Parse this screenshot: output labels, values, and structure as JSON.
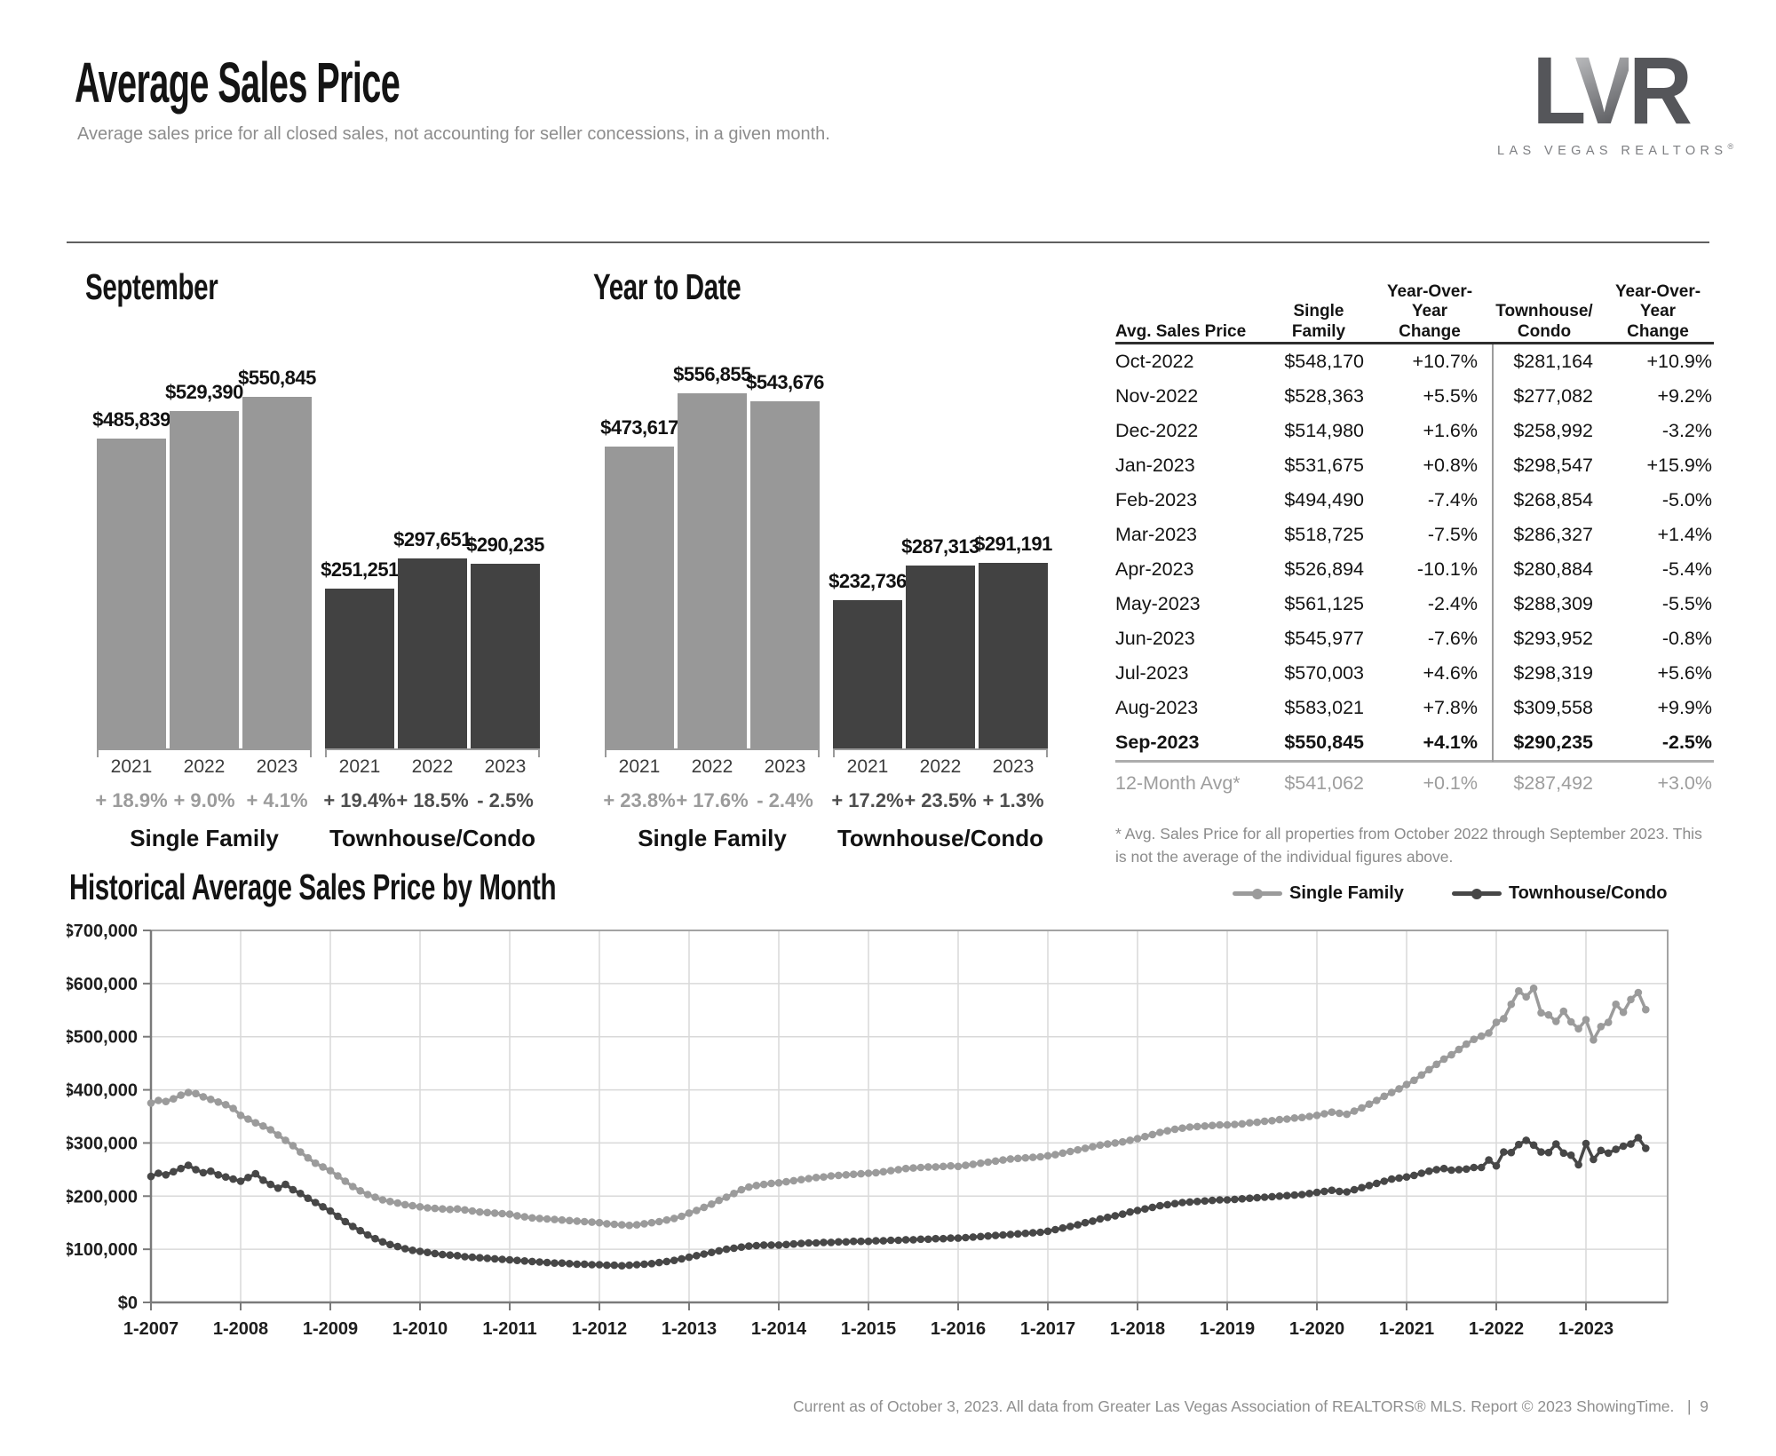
{
  "page": {
    "title": "Average Sales Price",
    "subtitle": "Average sales price for all closed sales, not accounting for seller concessions, in a given month.",
    "footer_text": "Current as of October 3, 2023. All data from Greater Las Vegas Association of REALTORS® MLS. Report © 2023 ShowingTime.",
    "footer_separator": "|",
    "page_number": "9"
  },
  "logo": {
    "letter_l": "L",
    "letter_v": "V",
    "letter_r": "R",
    "subtext": "LAS VEGAS REALTORS",
    "registered_mark": "®"
  },
  "colors": {
    "single_family": "#989898",
    "townhouse_condo": "#424242",
    "sf_pct_label": "#9b9b9b",
    "tc_pct_label": "#4e4e4e",
    "grid": "#d9d9d9",
    "axis": "#7a7a7a",
    "plot_border": "#a3a3a3"
  },
  "table": {
    "col_headers": [
      "Avg. Sales Price",
      "Single\nFamily",
      "Year-Over-Year\nChange",
      "Townhouse/\nCondo",
      "Year-Over-Year\nChange"
    ],
    "rows": [
      {
        "month": "Oct-2022",
        "sf": "$548,170",
        "sf_chg": "+10.7%",
        "tc": "$281,164",
        "tc_chg": "+10.9%",
        "bold": false
      },
      {
        "month": "Nov-2022",
        "sf": "$528,363",
        "sf_chg": "+5.5%",
        "tc": "$277,082",
        "tc_chg": "+9.2%",
        "bold": false
      },
      {
        "month": "Dec-2022",
        "sf": "$514,980",
        "sf_chg": "+1.6%",
        "tc": "$258,992",
        "tc_chg": "-3.2%",
        "bold": false
      },
      {
        "month": "Jan-2023",
        "sf": "$531,675",
        "sf_chg": "+0.8%",
        "tc": "$298,547",
        "tc_chg": "+15.9%",
        "bold": false
      },
      {
        "month": "Feb-2023",
        "sf": "$494,490",
        "sf_chg": "-7.4%",
        "tc": "$268,854",
        "tc_chg": "-5.0%",
        "bold": false
      },
      {
        "month": "Mar-2023",
        "sf": "$518,725",
        "sf_chg": "-7.5%",
        "tc": "$286,327",
        "tc_chg": "+1.4%",
        "bold": false
      },
      {
        "month": "Apr-2023",
        "sf": "$526,894",
        "sf_chg": "-10.1%",
        "tc": "$280,884",
        "tc_chg": "-5.4%",
        "bold": false
      },
      {
        "month": "May-2023",
        "sf": "$561,125",
        "sf_chg": "-2.4%",
        "tc": "$288,309",
        "tc_chg": "-5.5%",
        "bold": false
      },
      {
        "month": "Jun-2023",
        "sf": "$545,977",
        "sf_chg": "-7.6%",
        "tc": "$293,952",
        "tc_chg": "-0.8%",
        "bold": false
      },
      {
        "month": "Jul-2023",
        "sf": "$570,003",
        "sf_chg": "+4.6%",
        "tc": "$298,319",
        "tc_chg": "+5.6%",
        "bold": false
      },
      {
        "month": "Aug-2023",
        "sf": "$583,021",
        "sf_chg": "+7.8%",
        "tc": "$309,558",
        "tc_chg": "+9.9%",
        "bold": false
      },
      {
        "month": "Sep-2023",
        "sf": "$550,845",
        "sf_chg": "+4.1%",
        "tc": "$290,235",
        "tc_chg": "-2.5%",
        "bold": true
      }
    ],
    "avg_row": {
      "month": "12-Month Avg*",
      "sf": "$541,062",
      "sf_chg": "+0.1%",
      "tc": "$287,492",
      "tc_chg": "+3.0%"
    },
    "footnote": "* Avg. Sales Price for all properties from October 2022 through September 2023. This is not the average of the individual figures above."
  },
  "chart_data": [
    {
      "id": "september",
      "type": "bar",
      "title": "September",
      "ylim": [
        0,
        600000
      ],
      "groups": [
        {
          "label": "Single Family",
          "color": "#989898",
          "pct_color": "#9b9b9b",
          "categories": [
            "2021",
            "2022",
            "2023"
          ],
          "values": [
            485839,
            529390,
            550845
          ],
          "value_labels": [
            "$485,839",
            "$529,390",
            "$550,845"
          ],
          "pct_changes": [
            "+ 18.9%",
            "+ 9.0%",
            "+ 4.1%"
          ]
        },
        {
          "label": "Townhouse/Condo",
          "color": "#424242",
          "pct_color": "#4e4e4e",
          "categories": [
            "2021",
            "2022",
            "2023"
          ],
          "values": [
            251251,
            297651,
            290235
          ],
          "value_labels": [
            "$251,251",
            "$297,651",
            "$290,235"
          ],
          "pct_changes": [
            "+ 19.4%",
            "+ 18.5%",
            "- 2.5%"
          ]
        }
      ]
    },
    {
      "id": "ytd",
      "type": "bar",
      "title": "Year to Date",
      "ylim": [
        0,
        600000
      ],
      "groups": [
        {
          "label": "Single Family",
          "color": "#989898",
          "pct_color": "#9b9b9b",
          "categories": [
            "2021",
            "2022",
            "2023"
          ],
          "values": [
            473617,
            556855,
            543676
          ],
          "value_labels": [
            "$473,617",
            "$556,855",
            "$543,676"
          ],
          "pct_changes": [
            "+ 23.8%",
            "+ 17.6%",
            "- 2.4%"
          ]
        },
        {
          "label": "Townhouse/Condo",
          "color": "#424242",
          "pct_color": "#4e4e4e",
          "categories": [
            "2021",
            "2022",
            "2023"
          ],
          "values": [
            232736,
            287313,
            291191
          ],
          "value_labels": [
            "$232,736",
            "$287,313",
            "$291,191"
          ],
          "pct_changes": [
            "+ 17.2%",
            "+ 23.5%",
            "+ 1.3%"
          ]
        }
      ]
    },
    {
      "id": "historical",
      "type": "line",
      "title": "Historical Average Sales Price by Month",
      "legend_position": "top-right",
      "grid": true,
      "ylim": [
        0,
        700000
      ],
      "y_tick_labels": [
        "$0",
        "$100,000",
        "$200,000",
        "$300,000",
        "$400,000",
        "$500,000",
        "$600,000",
        "$700,000"
      ],
      "x_tick_labels": [
        "1-2007",
        "1-2008",
        "1-2009",
        "1-2010",
        "1-2011",
        "1-2012",
        "1-2013",
        "1-2014",
        "1-2015",
        "1-2016",
        "1-2017",
        "1-2018",
        "1-2019",
        "1-2020",
        "1-2021",
        "1-2022",
        "1-2023"
      ],
      "x_start": "2007-01",
      "x_end": "2023-09",
      "series": [
        {
          "name": "Single Family",
          "color": "#9b9b9b",
          "values_thousands": [
            375,
            380,
            378,
            383,
            390,
            395,
            393,
            387,
            382,
            377,
            372,
            365,
            352,
            345,
            338,
            332,
            325,
            315,
            305,
            295,
            283,
            272,
            262,
            255,
            248,
            238,
            228,
            218,
            210,
            203,
            198,
            193,
            190,
            187,
            184,
            182,
            180,
            178,
            177,
            176,
            175,
            176,
            174,
            172,
            170,
            169,
            168,
            167,
            166,
            163,
            161,
            159,
            158,
            157,
            156,
            155,
            154,
            153,
            152,
            151,
            150,
            148,
            147,
            146,
            145,
            146,
            148,
            150,
            152,
            155,
            158,
            162,
            168,
            173,
            179,
            185,
            192,
            198,
            205,
            212,
            217,
            220,
            222,
            224,
            225,
            227,
            229,
            231,
            233,
            235,
            236,
            238,
            239,
            240,
            241,
            242,
            243,
            244,
            246,
            248,
            250,
            252,
            253,
            254,
            255,
            255,
            256,
            257,
            256,
            258,
            260,
            262,
            264,
            266,
            268,
            270,
            271,
            272,
            273,
            274,
            276,
            278,
            281,
            284,
            287,
            290,
            293,
            296,
            298,
            300,
            302,
            305,
            308,
            312,
            316,
            320,
            323,
            326,
            328,
            330,
            331,
            332,
            333,
            334,
            334,
            335,
            336,
            338,
            339,
            341,
            342,
            344,
            345,
            347,
            348,
            350,
            352,
            355,
            358,
            356,
            354,
            360,
            366,
            373,
            380,
            388,
            395,
            402,
            410,
            418,
            428,
            438,
            448,
            458,
            466,
            476,
            486,
            495,
            501,
            507,
            527,
            534,
            561,
            586,
            575,
            591,
            545,
            541,
            529,
            548,
            528,
            515,
            532,
            494,
            519,
            527,
            561,
            546,
            570,
            583,
            551
          ]
        },
        {
          "name": "Townhouse/Condo",
          "color": "#474747",
          "values_thousands": [
            237,
            243,
            240,
            246,
            252,
            258,
            250,
            244,
            247,
            240,
            236,
            232,
            228,
            235,
            242,
            230,
            222,
            215,
            222,
            212,
            205,
            196,
            188,
            180,
            172,
            162,
            152,
            143,
            135,
            127,
            120,
            114,
            109,
            105,
            101,
            98,
            96,
            94,
            92,
            90,
            89,
            88,
            86,
            85,
            84,
            83,
            82,
            81,
            80,
            79,
            78,
            77,
            76,
            75,
            74,
            74,
            73,
            72,
            72,
            71,
            71,
            70,
            70,
            69,
            70,
            71,
            72,
            73,
            75,
            77,
            79,
            82,
            85,
            88,
            91,
            94,
            97,
            100,
            102,
            104,
            106,
            107,
            108,
            108,
            108,
            109,
            110,
            111,
            112,
            112,
            113,
            113,
            114,
            114,
            115,
            115,
            115,
            116,
            116,
            117,
            117,
            118,
            118,
            119,
            119,
            120,
            120,
            121,
            121,
            122,
            123,
            124,
            125,
            126,
            127,
            128,
            129,
            130,
            131,
            132,
            134,
            137,
            140,
            143,
            146,
            150,
            153,
            157,
            160,
            163,
            166,
            170,
            173,
            176,
            179,
            182,
            184,
            186,
            188,
            189,
            190,
            191,
            192,
            193,
            193,
            194,
            195,
            196,
            197,
            198,
            199,
            200,
            201,
            202,
            203,
            205,
            207,
            209,
            211,
            209,
            208,
            212,
            216,
            220,
            224,
            228,
            232,
            234,
            236,
            239,
            243,
            247,
            250,
            252,
            249,
            250,
            251,
            254,
            254,
            268,
            257,
            283,
            282,
            297,
            305,
            296,
            283,
            282,
            298,
            281,
            277,
            259,
            299,
            269,
            286,
            281,
            288,
            294,
            298,
            310,
            290
          ]
        }
      ]
    }
  ]
}
